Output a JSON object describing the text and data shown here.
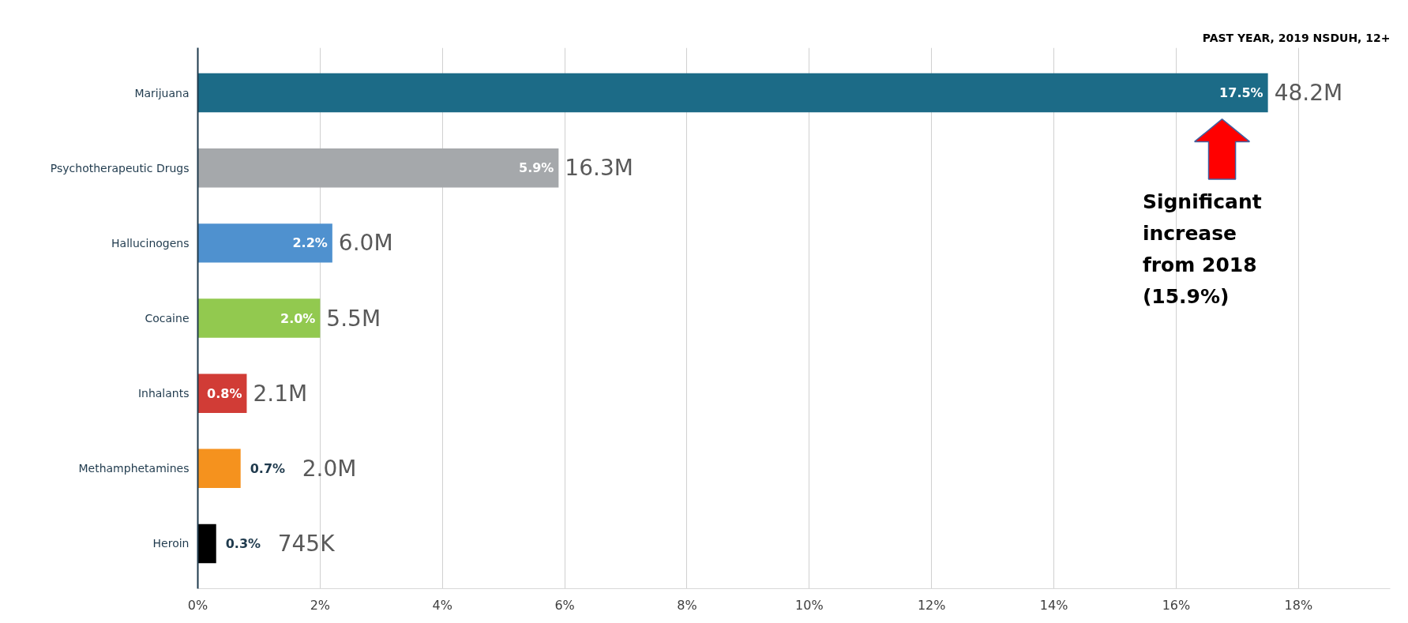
{
  "chart_data": {
    "type": "bar",
    "orientation": "horizontal",
    "title": "PAST YEAR, 2019 NSDUH, 12+",
    "categories": [
      "Marijuana",
      "Psychotherapeutic Drugs",
      "Hallucinogens",
      "Cocaine",
      "Inhalants",
      "Methamphetamines",
      "Heroin"
    ],
    "values": [
      17.5,
      5.9,
      2.2,
      2.0,
      0.8,
      0.7,
      0.3
    ],
    "colors": [
      "#1c6b87",
      "#a5a8ab",
      "#4f91cf",
      "#92c94f",
      "#d13c36",
      "#f5921e",
      "#000000"
    ],
    "value_labels": [
      "17.5%",
      "5.9%",
      "2.2%",
      "2.0%",
      "0.8%",
      "0.7%",
      "0.3%"
    ],
    "xlim": [
      0,
      19.5
    ],
    "xticks": [
      {
        "value": 0,
        "label": "0%"
      },
      {
        "value": 2,
        "label": "2%"
      },
      {
        "value": 4,
        "label": "4%"
      },
      {
        "value": 6,
        "label": "6%"
      },
      {
        "value": 8,
        "label": "8%"
      },
      {
        "value": 10,
        "label": "10%"
      },
      {
        "value": 12,
        "label": "12%"
      },
      {
        "value": 14,
        "label": "14%"
      },
      {
        "value": 16,
        "label": "16%"
      },
      {
        "value": 18,
        "label": "18%"
      }
    ],
    "grid": "x",
    "annotations": [
      {
        "text": "48.2M",
        "x": 17.5,
        "y": "Marijuana"
      },
      {
        "text": "16.3M",
        "x": 5.9,
        "y": "Psychotherapeutic Drugs"
      },
      {
        "text": "6.0M",
        "x": 2.2,
        "y": "Hallucinogens"
      },
      {
        "text": "5.5M",
        "x": 2.0,
        "y": "Cocaine"
      },
      {
        "text": "2.1M",
        "x": 0.8,
        "y": "Inhalants"
      },
      {
        "text": "2.0M",
        "x": 0.7,
        "y": "Methamphetamines"
      },
      {
        "text": "745K",
        "x": 0.3,
        "y": "Heroin"
      },
      "Significant increase from 2018 (15.9%)"
    ]
  }
}
